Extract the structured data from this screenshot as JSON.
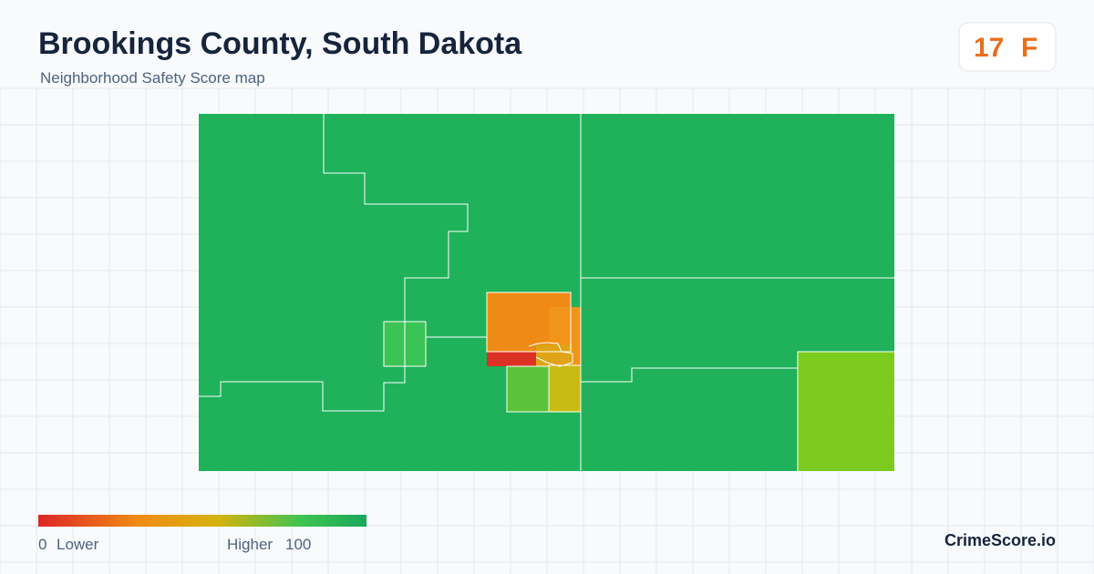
{
  "header": {
    "title": "Brookings County, South Dakota",
    "subtitle": "Neighborhood Safety Score map"
  },
  "score": {
    "value": 17,
    "grade": "F"
  },
  "legend": {
    "min": 0,
    "min_label": "Lower",
    "max_label": "Higher",
    "max": 100
  },
  "brand": "CrimeScore.io"
}
